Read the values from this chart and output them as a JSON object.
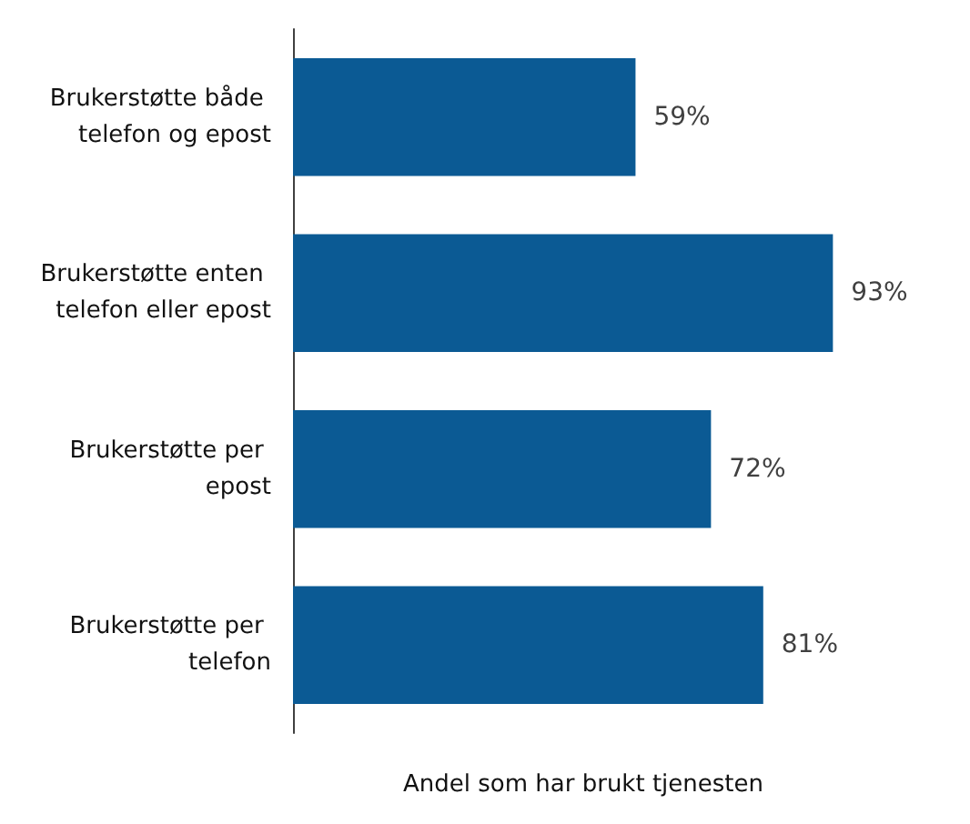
{
  "chart_data": {
    "type": "bar",
    "orientation": "horizontal",
    "xlabel": "Andel som har brukt tjenesten",
    "categories": [
      "Brukerstøtte både telefon og epost",
      "Brukerstøtte enten telefon eller epost",
      "Brukerstøtte per epost",
      "Brukerstøtte per telefon"
    ],
    "values": [
      59,
      93,
      72,
      81
    ],
    "value_labels": [
      "59%",
      "93%",
      "72%",
      "81%"
    ],
    "color": "#0b5a94",
    "tick_labels": "y"
  }
}
